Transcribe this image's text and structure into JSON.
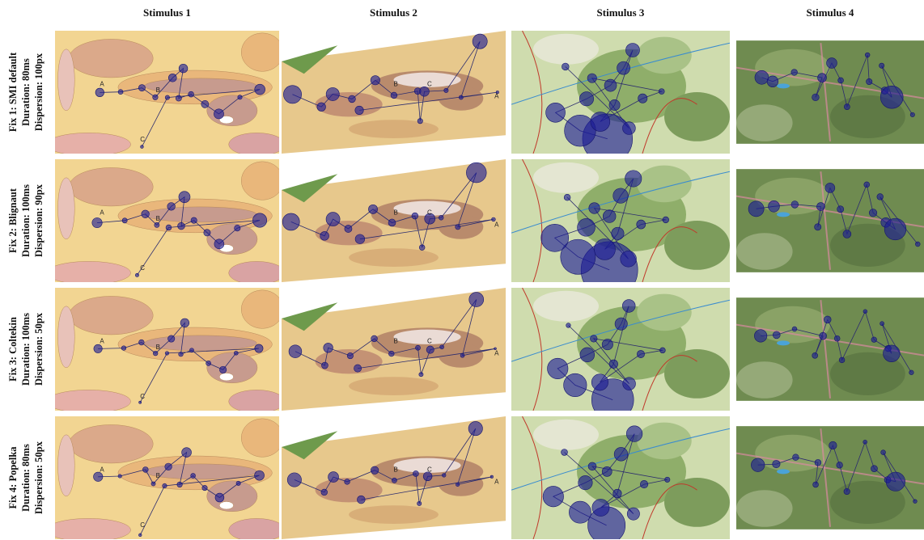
{
  "columns": [
    {
      "title": "Stimulus 1",
      "markers": [
        "A",
        "B",
        "C"
      ]
    },
    {
      "title": "Stimulus 2",
      "markers": [
        "B",
        "C",
        "A"
      ]
    },
    {
      "title": "Stimulus 3"
    },
    {
      "title": "Stimulus 4"
    }
  ],
  "rows": [
    {
      "lines": [
        "Fix 1: SMI default",
        "Duration: 80ms",
        "Dispersion: 100px"
      ]
    },
    {
      "lines": [
        "Fix 2: Blignaut",
        "Duration: 100ms",
        "Dispersion: 90px"
      ]
    },
    {
      "lines": [
        "Fix 3: Coltekin",
        "Duration: 100ms",
        "Dispersion: 50px"
      ]
    },
    {
      "lines": [
        "Fix 4: Popelka",
        "Duration: 80ms",
        "Dispersion: 50px"
      ]
    }
  ]
}
